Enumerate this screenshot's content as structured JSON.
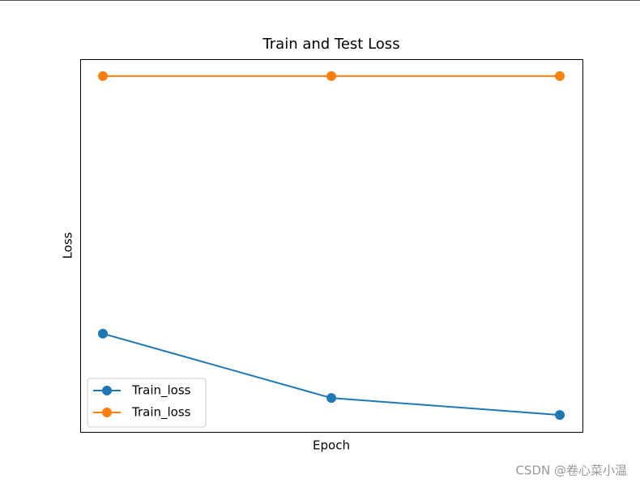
{
  "chart_data": {
    "type": "line",
    "title": "Train and Test Loss",
    "x_label": "Epoch",
    "y_label": "Loss",
    "categories": [
      null,
      null,
      null
    ],
    "series": [
      {
        "name": "Train_loss",
        "color": "#1f77b4",
        "values": [
          0.24,
          0.05,
          0.0
        ]
      },
      {
        "name": "Train_loss",
        "color": "#ff7f0e",
        "values": [
          1.0,
          1.0,
          1.0
        ]
      }
    ],
    "ylim": [
      -0.05,
      1.05
    ],
    "legend": "lower left",
    "watermark": "CSDN @卷心菜小温"
  }
}
